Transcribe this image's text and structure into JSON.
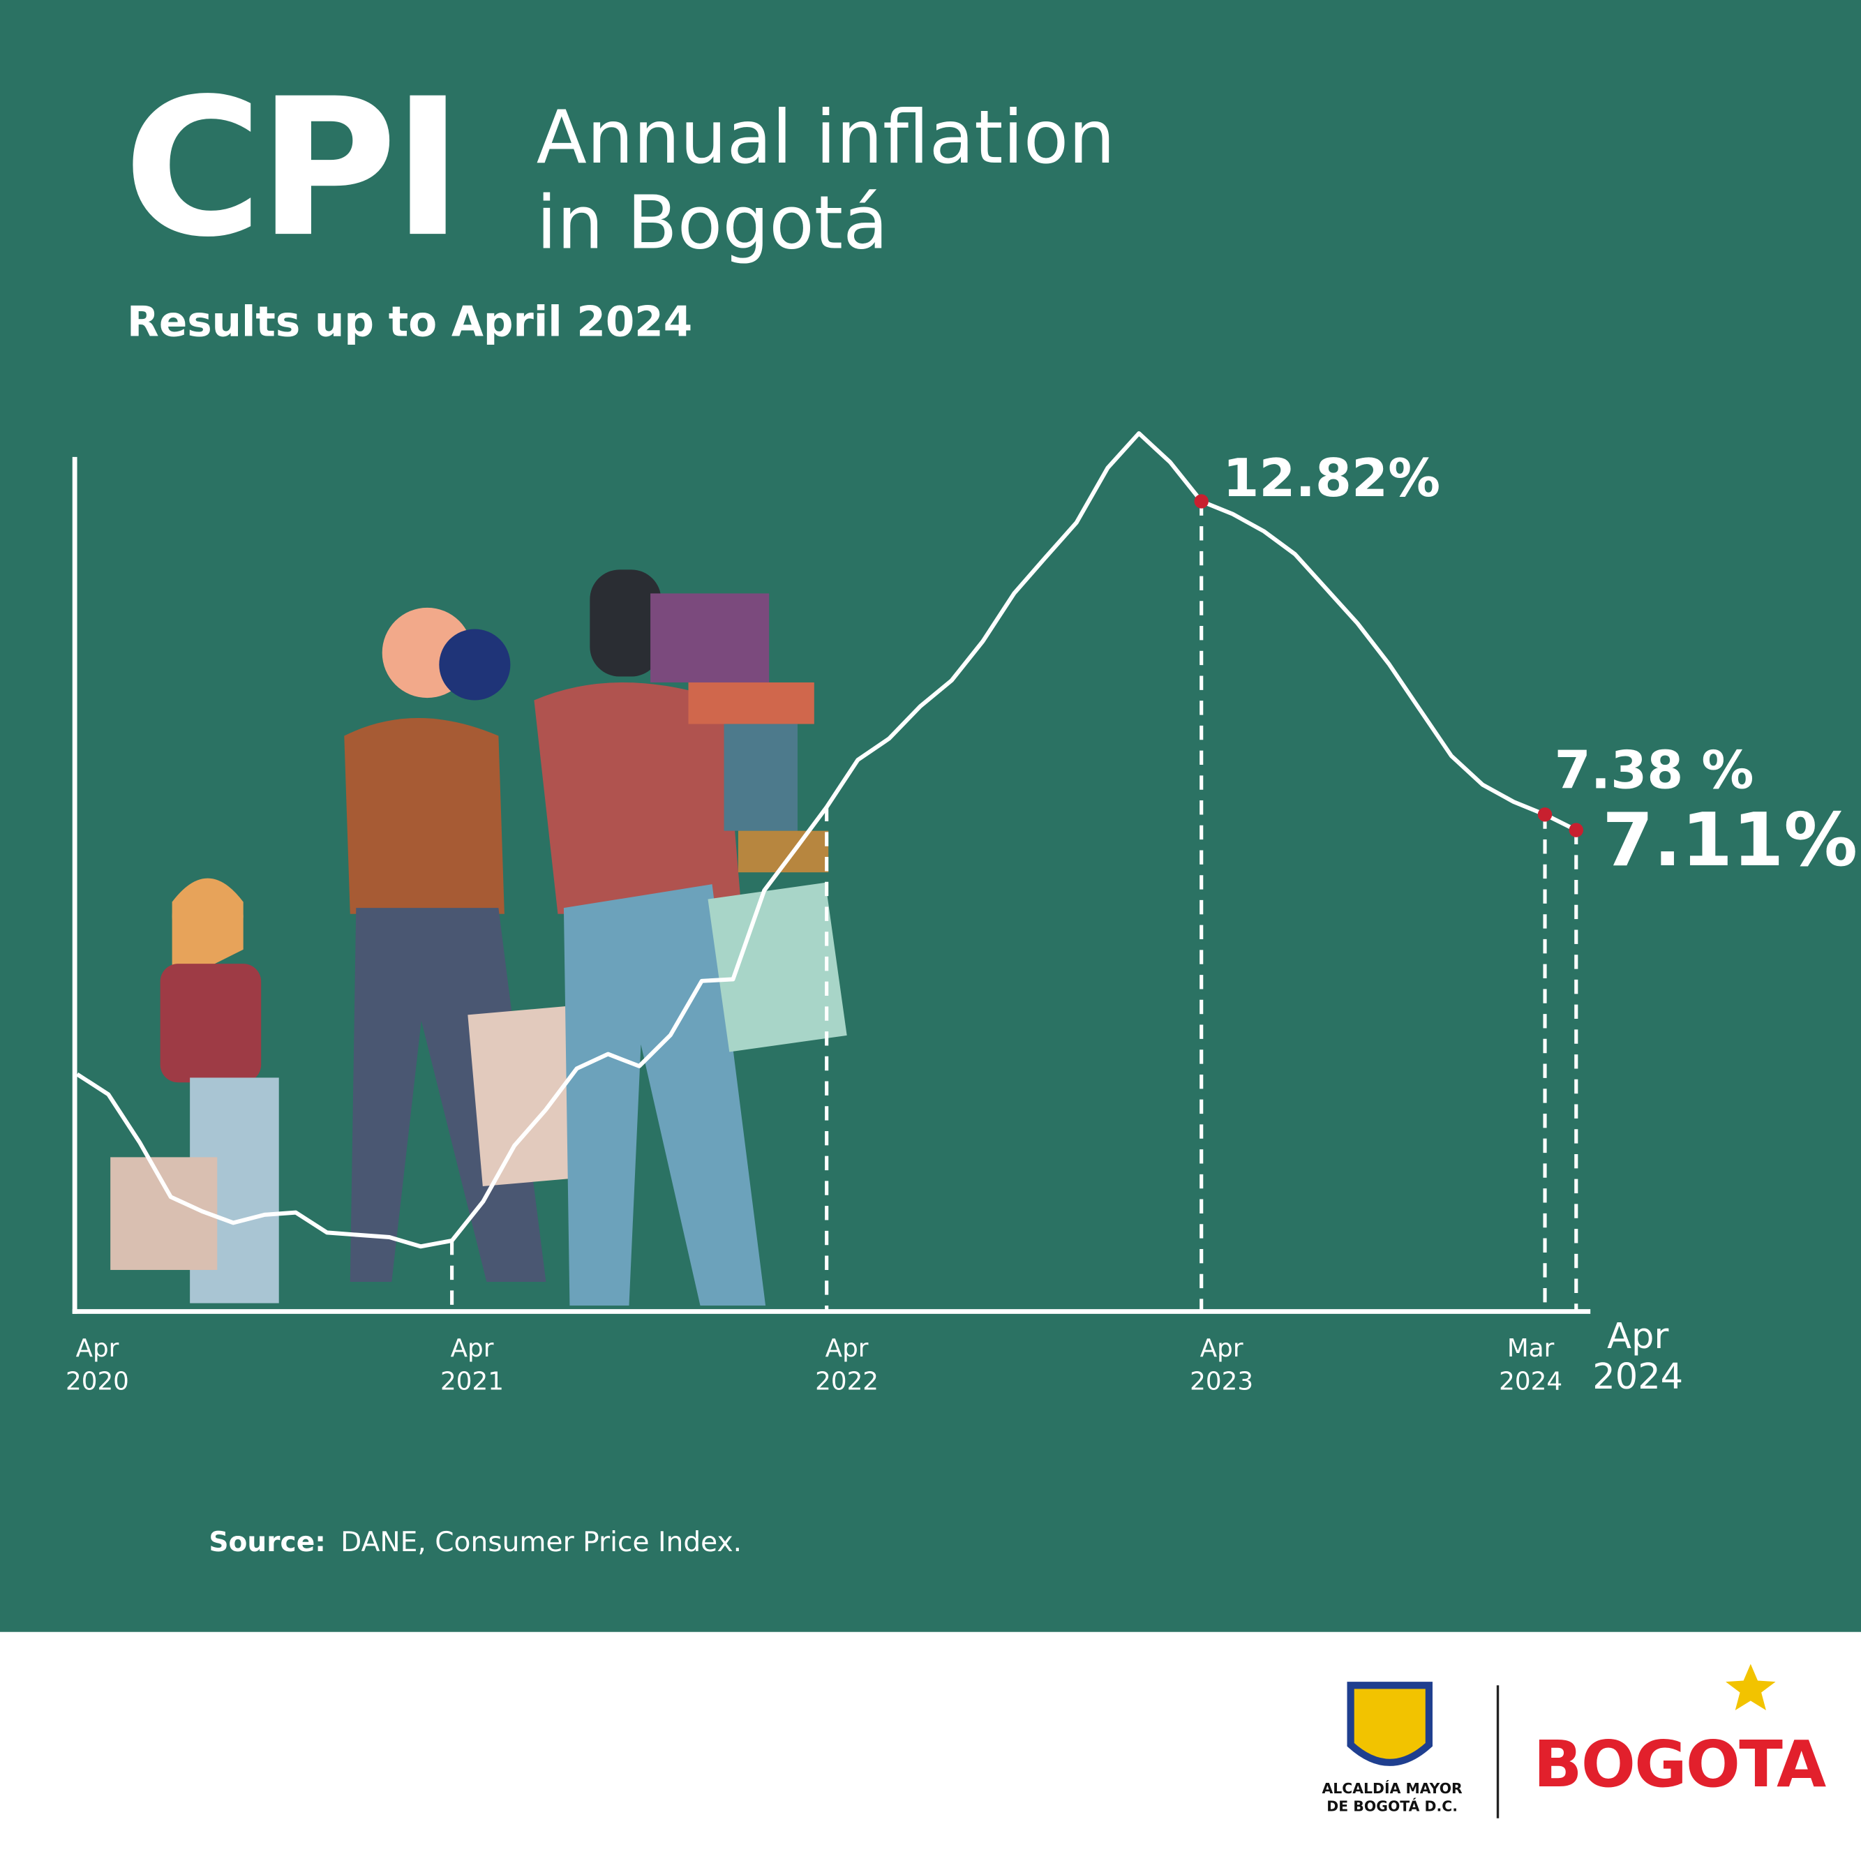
{
  "chart_data": {
    "type": "line",
    "title": "CPI",
    "subtitle": "Annual inflation in Bogotá",
    "note": "Results up to April 2024",
    "source_label": "Source:",
    "source": "DANE, Consumer Price Index.",
    "color": "#ffffff",
    "marker_color": "#c8202f",
    "ylim": [
      -1.25,
      14.25
    ],
    "categories": [
      "Apr 2020",
      null,
      null,
      null,
      null,
      null,
      null,
      null,
      null,
      null,
      null,
      null,
      "Apr 2021",
      null,
      null,
      null,
      null,
      null,
      null,
      null,
      null,
      null,
      null,
      null,
      "Apr 2022",
      null,
      null,
      null,
      null,
      null,
      null,
      null,
      null,
      null,
      null,
      null,
      "Apr 2023",
      null,
      null,
      null,
      null,
      null,
      null,
      null,
      null,
      null,
      null,
      "Mar 2024",
      "Apr 2024"
    ],
    "values": [
      2.87,
      2.52,
      1.69,
      0.74,
      0.49,
      0.29,
      0.43,
      0.47,
      0.12,
      0.08,
      0.04,
      -0.12,
      -0.02,
      0.66,
      1.63,
      2.25,
      2.97,
      3.22,
      3.01,
      3.55,
      4.49,
      4.52,
      6.06,
      6.78,
      7.51,
      8.33,
      8.7,
      9.26,
      9.71,
      10.39,
      11.22,
      11.84,
      12.45,
      13.4,
      14.0,
      13.5,
      12.82,
      12.6,
      12.3,
      11.9,
      11.3,
      10.7,
      10.0,
      9.2,
      8.4,
      7.9,
      7.6,
      7.38,
      7.11
    ],
    "value_labels": [
      null,
      null,
      null,
      null,
      null,
      null,
      null,
      null,
      null,
      null,
      null,
      null,
      null,
      null,
      null,
      null,
      null,
      null,
      null,
      null,
      null,
      null,
      null,
      null,
      null,
      null,
      null,
      null,
      null,
      null,
      null,
      null,
      null,
      null,
      null,
      null,
      "12.82%",
      null,
      null,
      null,
      null,
      null,
      null,
      null,
      null,
      null,
      null,
      "7.38 %",
      "7.11%"
    ]
  },
  "footer": {
    "agency": "ALCALDÍA MAYOR DE BOGOTÁ D.C.",
    "brand": "BOGOTA"
  }
}
